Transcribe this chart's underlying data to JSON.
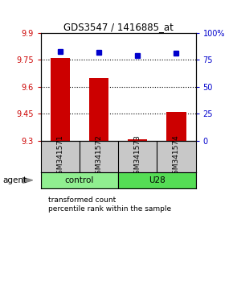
{
  "title": "GDS3547 / 1416885_at",
  "samples": [
    "GSM341571",
    "GSM341572",
    "GSM341573",
    "GSM341574"
  ],
  "red_values": [
    9.76,
    9.65,
    9.31,
    9.46
  ],
  "blue_values_pct": [
    83,
    82,
    79,
    81
  ],
  "ylim_left": [
    9.3,
    9.9
  ],
  "ylim_right": [
    0,
    100
  ],
  "yticks_left": [
    9.3,
    9.45,
    9.6,
    9.75,
    9.9
  ],
  "ytick_labels_left": [
    "9.3",
    "9.45",
    "9.6",
    "9.75",
    "9.9"
  ],
  "yticks_right": [
    0,
    25,
    50,
    75,
    100
  ],
  "ytick_labels_right": [
    "0",
    "25",
    "50",
    "75",
    "100%"
  ],
  "hlines": [
    9.45,
    9.6,
    9.75
  ],
  "groups": [
    {
      "label": "control",
      "samples": [
        0,
        1
      ],
      "color": "#90EE90"
    },
    {
      "label": "U28",
      "samples": [
        2,
        3
      ],
      "color": "#55DD55"
    }
  ],
  "group_row_label": "agent",
  "bar_color": "#CC0000",
  "dot_color": "#0000CC",
  "bar_width": 0.5,
  "sample_box_color": "#C8C8C8",
  "background_color": "#FFFFFF",
  "plot_bg_color": "#FFFFFF",
  "legend_red_label": "transformed count",
  "legend_blue_label": "percentile rank within the sample"
}
